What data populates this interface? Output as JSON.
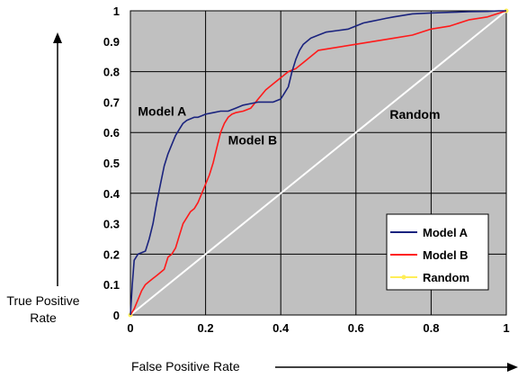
{
  "chart_data": {
    "type": "line",
    "title": "",
    "xlabel": "False  Positive Rate",
    "ylabel_line1": "True Positive",
    "ylabel_line2": "Rate",
    "xlim": [
      0,
      1
    ],
    "ylim": [
      0,
      1
    ],
    "xticks": [
      "0",
      "0.2",
      "0.4",
      "0.6",
      "0.8",
      "1"
    ],
    "yticks": [
      "0",
      "0.1",
      "0.2",
      "0.3",
      "0.4",
      "0.5",
      "0.6",
      "0.7",
      "0.8",
      "0.9",
      "1"
    ],
    "grid": true,
    "legend_position": "bottom-right",
    "annotations": [
      {
        "text": "Model A",
        "x": 0.02,
        "y": 0.655
      },
      {
        "text": "Model B",
        "x": 0.26,
        "y": 0.56
      },
      {
        "text": "Random",
        "x": 0.69,
        "y": 0.645
      }
    ],
    "series": [
      {
        "name": "Model A",
        "color": "#1a237e",
        "x": [
          0,
          0.005,
          0.01,
          0.02,
          0.04,
          0.05,
          0.06,
          0.07,
          0.08,
          0.09,
          0.1,
          0.11,
          0.12,
          0.13,
          0.14,
          0.15,
          0.16,
          0.17,
          0.18,
          0.19,
          0.2,
          0.22,
          0.24,
          0.26,
          0.28,
          0.3,
          0.32,
          0.34,
          0.36,
          0.38,
          0.4,
          0.41,
          0.42,
          0.43,
          0.44,
          0.45,
          0.46,
          0.47,
          0.48,
          0.5,
          0.52,
          0.55,
          0.58,
          0.6,
          0.62,
          0.64,
          0.66,
          0.68,
          0.7,
          0.75,
          0.8,
          0.85,
          0.9,
          0.95,
          0.98,
          1.0
        ],
        "y": [
          0,
          0.1,
          0.18,
          0.2,
          0.21,
          0.25,
          0.3,
          0.37,
          0.43,
          0.49,
          0.53,
          0.56,
          0.59,
          0.61,
          0.63,
          0.64,
          0.645,
          0.65,
          0.65,
          0.655,
          0.66,
          0.665,
          0.67,
          0.67,
          0.68,
          0.69,
          0.695,
          0.7,
          0.7,
          0.7,
          0.71,
          0.73,
          0.75,
          0.8,
          0.84,
          0.87,
          0.89,
          0.9,
          0.91,
          0.92,
          0.93,
          0.935,
          0.94,
          0.95,
          0.96,
          0.965,
          0.97,
          0.975,
          0.98,
          0.99,
          0.993,
          0.995,
          0.997,
          0.998,
          1.0,
          1.0
        ]
      },
      {
        "name": "Model B",
        "color": "#ff1a1a",
        "x": [
          0,
          0.01,
          0.02,
          0.03,
          0.04,
          0.05,
          0.06,
          0.07,
          0.08,
          0.09,
          0.1,
          0.11,
          0.12,
          0.13,
          0.14,
          0.15,
          0.16,
          0.17,
          0.18,
          0.19,
          0.2,
          0.21,
          0.22,
          0.23,
          0.24,
          0.25,
          0.26,
          0.27,
          0.28,
          0.3,
          0.32,
          0.34,
          0.36,
          0.38,
          0.4,
          0.42,
          0.44,
          0.46,
          0.48,
          0.5,
          0.55,
          0.6,
          0.65,
          0.7,
          0.75,
          0.8,
          0.85,
          0.9,
          0.95,
          1.0
        ],
        "y": [
          0,
          0.02,
          0.05,
          0.08,
          0.1,
          0.11,
          0.12,
          0.13,
          0.14,
          0.15,
          0.19,
          0.2,
          0.22,
          0.26,
          0.3,
          0.32,
          0.34,
          0.35,
          0.37,
          0.4,
          0.43,
          0.46,
          0.5,
          0.55,
          0.6,
          0.63,
          0.65,
          0.66,
          0.665,
          0.67,
          0.68,
          0.71,
          0.74,
          0.76,
          0.78,
          0.8,
          0.81,
          0.83,
          0.85,
          0.87,
          0.88,
          0.89,
          0.9,
          0.91,
          0.92,
          0.94,
          0.95,
          0.97,
          0.98,
          1.0
        ]
      },
      {
        "name": "Random",
        "color": "#ffffff",
        "marker_color": "#ffee58",
        "x": [
          0,
          1
        ],
        "y": [
          0,
          1
        ]
      }
    ]
  }
}
